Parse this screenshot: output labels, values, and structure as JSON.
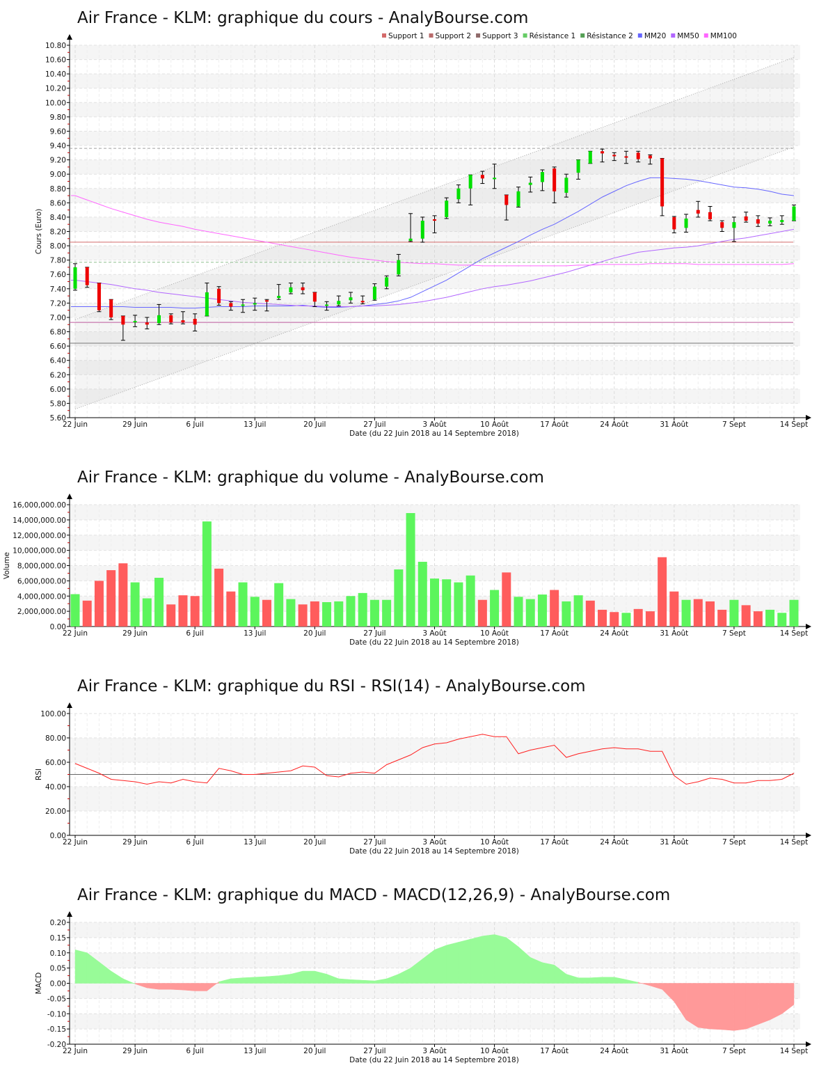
{
  "chart_data": [
    {
      "type": "candlestick",
      "title": "Air France - KLM: graphique du cours - AnalyBourse.com",
      "ylabel": "Cours (Euro)",
      "xlabel": "Date (du 22 Juin 2018 au 14 Septembre 2018)",
      "ylim": [
        5.6,
        10.8
      ],
      "yticks": [
        5.6,
        5.8,
        6.0,
        6.2,
        6.4,
        6.6,
        6.8,
        7.0,
        7.2,
        7.4,
        7.6,
        7.8,
        8.0,
        8.2,
        8.4,
        8.6,
        8.8,
        9.0,
        9.2,
        9.4,
        9.6,
        9.8,
        10.0,
        10.2,
        10.4,
        10.6,
        10.8
      ],
      "legend": [
        {
          "name": "Support 1",
          "color": "#d46a6a"
        },
        {
          "name": "Support 2",
          "color": "#b86b6b"
        },
        {
          "name": "Support 3",
          "color": "#8f6a6a"
        },
        {
          "name": "Résistance 1",
          "color": "#66cc66"
        },
        {
          "name": "Résistance 2",
          "color": "#55a055"
        },
        {
          "name": "MM20",
          "color": "#6666ff"
        },
        {
          "name": "MM50",
          "color": "#b266ff"
        },
        {
          "name": "MM100",
          "color": "#ff66ff"
        }
      ],
      "levels": {
        "support1": 8.05,
        "support2": 6.93,
        "support3": 6.64,
        "resistance1": 7.77,
        "resistance2": 9.36
      },
      "channel": {
        "upper": [
          6.97,
          10.63
        ],
        "lower": [
          5.72,
          9.38
        ]
      },
      "ohlc": [
        [
          7.4,
          7.75,
          7.38,
          7.7
        ],
        [
          7.7,
          7.7,
          7.42,
          7.45
        ],
        [
          7.48,
          7.48,
          7.08,
          7.1
        ],
        [
          7.25,
          7.25,
          6.97,
          7.0
        ],
        [
          7.02,
          7.02,
          6.68,
          6.9
        ],
        [
          6.93,
          7.03,
          6.87,
          6.95
        ],
        [
          6.93,
          7.0,
          6.84,
          6.9
        ],
        [
          6.92,
          7.18,
          6.9,
          7.03
        ],
        [
          7.03,
          7.05,
          6.91,
          6.93
        ],
        [
          6.96,
          7.08,
          6.91,
          6.93
        ],
        [
          6.98,
          7.05,
          6.81,
          6.9
        ],
        [
          7.02,
          7.48,
          7.02,
          7.35
        ],
        [
          7.4,
          7.43,
          7.17,
          7.2
        ],
        [
          7.2,
          7.22,
          7.1,
          7.15
        ],
        [
          7.17,
          7.25,
          7.07,
          7.18
        ],
        [
          7.18,
          7.27,
          7.1,
          7.2
        ],
        [
          7.24,
          7.25,
          7.09,
          7.22
        ],
        [
          7.27,
          7.46,
          7.25,
          7.3
        ],
        [
          7.35,
          7.48,
          7.33,
          7.42
        ],
        [
          7.42,
          7.48,
          7.33,
          7.38
        ],
        [
          7.35,
          7.35,
          7.15,
          7.22
        ],
        [
          7.16,
          7.22,
          7.1,
          7.18
        ],
        [
          7.18,
          7.3,
          7.16,
          7.23
        ],
        [
          7.24,
          7.35,
          7.2,
          7.28
        ],
        [
          7.23,
          7.3,
          7.19,
          7.21
        ],
        [
          7.25,
          7.47,
          7.24,
          7.43
        ],
        [
          7.43,
          7.58,
          7.4,
          7.56
        ],
        [
          7.6,
          7.88,
          7.58,
          7.8
        ],
        [
          8.07,
          8.45,
          8.06,
          8.1
        ],
        [
          8.1,
          8.4,
          8.05,
          8.35
        ],
        [
          8.37,
          8.42,
          8.18,
          8.35
        ],
        [
          8.4,
          8.67,
          8.38,
          8.63
        ],
        [
          8.65,
          8.85,
          8.6,
          8.8
        ],
        [
          8.8,
          8.99,
          8.57,
          8.99
        ],
        [
          8.99,
          9.04,
          8.87,
          8.94
        ],
        [
          8.93,
          9.14,
          8.8,
          8.95
        ],
        [
          8.71,
          8.71,
          8.36,
          8.57
        ],
        [
          8.55,
          8.82,
          8.54,
          8.76
        ],
        [
          8.85,
          8.96,
          8.75,
          8.88
        ],
        [
          8.89,
          9.06,
          8.77,
          9.03
        ],
        [
          9.08,
          9.1,
          8.6,
          8.76
        ],
        [
          8.74,
          9.0,
          8.68,
          8.95
        ],
        [
          9.02,
          9.2,
          8.93,
          9.2
        ],
        [
          9.15,
          9.32,
          9.15,
          9.32
        ],
        [
          9.32,
          9.35,
          9.17,
          9.29
        ],
        [
          9.27,
          9.3,
          9.19,
          9.25
        ],
        [
          9.25,
          9.32,
          9.15,
          9.23
        ],
        [
          9.3,
          9.32,
          9.17,
          9.21
        ],
        [
          9.26,
          9.27,
          9.14,
          9.22
        ],
        [
          9.22,
          9.22,
          8.42,
          8.55
        ],
        [
          8.4,
          8.41,
          8.18,
          8.23
        ],
        [
          8.25,
          8.44,
          8.19,
          8.38
        ],
        [
          8.5,
          8.62,
          8.4,
          8.45
        ],
        [
          8.47,
          8.55,
          8.35,
          8.37
        ],
        [
          8.33,
          8.35,
          8.2,
          8.25
        ],
        [
          8.25,
          8.4,
          8.06,
          8.33
        ],
        [
          8.41,
          8.47,
          8.33,
          8.35
        ],
        [
          8.37,
          8.42,
          8.27,
          8.31
        ],
        [
          8.31,
          8.39,
          8.28,
          8.35
        ],
        [
          8.33,
          8.42,
          8.3,
          8.36
        ],
        [
          8.35,
          8.57,
          8.35,
          8.55
        ]
      ],
      "mm20": [
        7.15,
        7.15,
        7.15,
        7.15,
        7.15,
        7.14,
        7.14,
        7.14,
        7.14,
        7.13,
        7.13,
        7.14,
        7.15,
        7.15,
        7.15,
        7.16,
        7.16,
        7.16,
        7.16,
        7.17,
        7.15,
        7.14,
        7.14,
        7.15,
        7.16,
        7.18,
        7.2,
        7.23,
        7.28,
        7.36,
        7.44,
        7.52,
        7.62,
        7.72,
        7.82,
        7.9,
        7.98,
        8.06,
        8.15,
        8.23,
        8.3,
        8.39,
        8.48,
        8.58,
        8.68,
        8.76,
        8.84,
        8.9,
        8.95,
        8.95,
        8.94,
        8.93,
        8.91,
        8.88,
        8.85,
        8.82,
        8.81,
        8.79,
        8.76,
        8.72,
        8.7
      ],
      "mm50": [
        7.52,
        7.5,
        7.48,
        7.46,
        7.43,
        7.4,
        7.38,
        7.35,
        7.33,
        7.31,
        7.29,
        7.27,
        7.25,
        7.23,
        7.21,
        7.2,
        7.19,
        7.18,
        7.17,
        7.16,
        7.16,
        7.15,
        7.15,
        7.15,
        7.16,
        7.16,
        7.17,
        7.18,
        7.2,
        7.22,
        7.25,
        7.28,
        7.32,
        7.36,
        7.4,
        7.43,
        7.45,
        7.48,
        7.51,
        7.55,
        7.59,
        7.63,
        7.68,
        7.73,
        7.78,
        7.83,
        7.87,
        7.91,
        7.93,
        7.95,
        7.97,
        7.98,
        8.0,
        8.03,
        8.06,
        8.09,
        8.11,
        8.14,
        8.17,
        8.2,
        8.23
      ],
      "mm100": [
        8.7,
        8.64,
        8.58,
        8.52,
        8.47,
        8.42,
        8.37,
        8.33,
        8.3,
        8.27,
        8.23,
        8.2,
        8.17,
        8.14,
        8.11,
        8.08,
        8.05,
        8.02,
        7.99,
        7.96,
        7.93,
        7.9,
        7.87,
        7.84,
        7.82,
        7.8,
        7.78,
        7.77,
        7.76,
        7.75,
        7.75,
        7.74,
        7.73,
        7.73,
        7.72,
        7.72,
        7.72,
        7.72,
        7.72,
        7.72,
        7.72,
        7.72,
        7.73,
        7.73,
        7.74,
        7.74,
        7.74,
        7.74,
        7.75,
        7.75,
        7.75,
        7.75,
        7.74,
        7.74,
        7.74,
        7.74,
        7.74,
        7.74,
        7.74,
        7.74,
        7.75
      ]
    },
    {
      "type": "bar",
      "title": "Air France - KLM: graphique du volume - AnalyBourse.com",
      "ylabel": "Volume",
      "xlabel": "Date (du 22 Juin 2018 au 14 Septembre 2018)",
      "ylim": [
        0,
        16000000
      ],
      "yticks": [
        "0.00",
        "2,000,000.00",
        "4,000,000.00",
        "6,000,000.00",
        "8,000,000.00",
        "10,000,000.00",
        "12,000,000.00",
        "14,000,000.00",
        "16,000,000.00"
      ],
      "values": [
        4.25,
        3.4,
        6.0,
        7.4,
        8.3,
        5.8,
        3.7,
        6.4,
        2.9,
        4.1,
        4.0,
        13.8,
        7.6,
        4.6,
        5.8,
        3.9,
        3.5,
        5.7,
        3.6,
        2.9,
        3.3,
        3.2,
        3.3,
        4.0,
        4.4,
        3.5,
        3.5,
        7.5,
        14.9,
        8.5,
        6.3,
        6.2,
        5.8,
        6.7,
        3.5,
        4.8,
        7.1,
        3.9,
        3.6,
        4.2,
        4.8,
        3.3,
        4.1,
        3.4,
        2.2,
        1.9,
        1.8,
        2.3,
        2.0,
        9.1,
        4.6,
        3.5,
        3.6,
        3.3,
        2.2,
        3.5,
        2.8,
        2.0,
        2.2,
        1.8,
        3.5
      ],
      "values_unit": "millions",
      "colors": "GRRRRGGGRRRGRRGGRGGRRGGGGGGGGGGGGGRGRGGGRGGRRRGRRRRGRRRGRRGGG",
      "up_color": "#5cf55c",
      "down_color": "#ff5c5c"
    },
    {
      "type": "line",
      "title": "Air France - KLM: graphique du RSI - RSI(14) - AnalyBourse.com",
      "ylabel": "RSI",
      "xlabel": "Date (du 22 Juin 2018 au 14 Septembre 2018)",
      "ylim": [
        0,
        100
      ],
      "yticks": [
        "0.00",
        "20.00",
        "40.00",
        "60.00",
        "80.00",
        "100.00"
      ],
      "reference": 50,
      "values": [
        59,
        55,
        51,
        46,
        45,
        44,
        42,
        44,
        43,
        46,
        44,
        43,
        55,
        53,
        50,
        50,
        51,
        52,
        53,
        57,
        56,
        49,
        48,
        51,
        52,
        51,
        58,
        62,
        66,
        72,
        75,
        76,
        79,
        81,
        83,
        81,
        81,
        67,
        70,
        72,
        74,
        64,
        67,
        69,
        71,
        72,
        71,
        71,
        69,
        69,
        49,
        42,
        44,
        47,
        46,
        43,
        43,
        45,
        45,
        46,
        51
      ]
    },
    {
      "type": "area",
      "title": "Air France - KLM: graphique du MACD - MACD(12,26,9) - AnalyBourse.com",
      "ylabel": "MACD",
      "xlabel": "Date (du 22 Juin 2018 au 14 Septembre 2018)",
      "ylim": [
        -0.2,
        0.2
      ],
      "yticks": [
        "-0.20",
        "-0.15",
        "-0.10",
        "-0.05",
        "0.00",
        "0.05",
        "0.10",
        "0.15",
        "0.20"
      ],
      "values": [
        0.11,
        0.1,
        0.07,
        0.04,
        0.015,
        -0.002,
        -0.015,
        -0.02,
        -0.02,
        -0.022,
        -0.025,
        -0.025,
        0.005,
        0.015,
        0.018,
        0.02,
        0.022,
        0.025,
        0.03,
        0.04,
        0.04,
        0.03,
        0.015,
        0.012,
        0.01,
        0.008,
        0.015,
        0.03,
        0.05,
        0.08,
        0.11,
        0.125,
        0.135,
        0.145,
        0.155,
        0.16,
        0.15,
        0.12,
        0.085,
        0.068,
        0.06,
        0.03,
        0.018,
        0.018,
        0.02,
        0.02,
        0.012,
        0.003,
        -0.008,
        -0.02,
        -0.06,
        -0.12,
        -0.145,
        -0.15,
        -0.152,
        -0.155,
        -0.15,
        -0.135,
        -0.12,
        -0.1,
        -0.07
      ],
      "pos_color": "#98fb98",
      "neg_color": "#ff9999"
    }
  ],
  "x_axis": {
    "labels": [
      {
        "i": 0,
        "t": "22 Juin"
      },
      {
        "i": 5,
        "t": "29 Juin"
      },
      {
        "i": 10,
        "t": "6 Juil"
      },
      {
        "i": 15,
        "t": "13 Juil"
      },
      {
        "i": 20,
        "t": "20 Juil"
      },
      {
        "i": 25,
        "t": "27 Juil"
      },
      {
        "i": 30,
        "t": "3 Août"
      },
      {
        "i": 35,
        "t": "10 Août"
      },
      {
        "i": 40,
        "t": "17 Août"
      },
      {
        "i": 45,
        "t": "24 Août"
      },
      {
        "i": 50,
        "t": "31 Août"
      },
      {
        "i": 55,
        "t": "7 Sept"
      },
      {
        "i": 60,
        "t": "14 Sept"
      }
    ],
    "count": 61
  }
}
